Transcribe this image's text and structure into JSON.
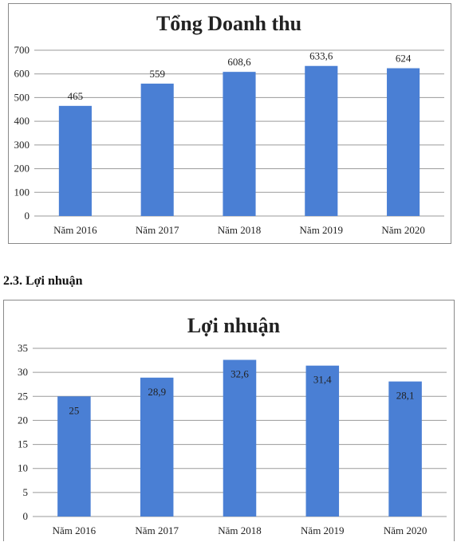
{
  "section_heading": "2.3. Lợi nhuận",
  "chart_data": [
    {
      "type": "bar",
      "title": "Tổng Doanh thu",
      "categories": [
        "Năm 2016",
        "Năm 2017",
        "Năm 2018",
        "Năm 2019",
        "Năm 2020"
      ],
      "values": [
        465,
        559,
        608.6,
        633.6,
        624
      ],
      "value_labels": [
        "465",
        "559",
        "608,6",
        "633,6",
        "624"
      ],
      "ylim": [
        0,
        700
      ],
      "yticks": [
        0,
        100,
        200,
        300,
        400,
        500,
        600,
        700
      ],
      "grid": true,
      "legend": "none",
      "bar_color": "#4a7fd4",
      "label_position": "outside-top"
    },
    {
      "type": "bar",
      "title": "Lợi nhuận",
      "categories": [
        "Năm 2016",
        "Năm 2017",
        "Năm 2018",
        "Năm 2019",
        "Năm 2020"
      ],
      "values": [
        25,
        28.9,
        32.6,
        31.4,
        28.1
      ],
      "value_labels": [
        "25",
        "28,9",
        "32,6",
        "31,4",
        "28,1"
      ],
      "ylim": [
        0,
        35
      ],
      "yticks": [
        0,
        5,
        10,
        15,
        20,
        25,
        30,
        35
      ],
      "ytick_labels": [
        "0",
        "5",
        "10",
        "15",
        "20",
        "25",
        "30",
        "35"
      ],
      "grid": true,
      "legend": "none",
      "bar_color": "#4a7fd4",
      "label_position": "inside-top"
    }
  ]
}
